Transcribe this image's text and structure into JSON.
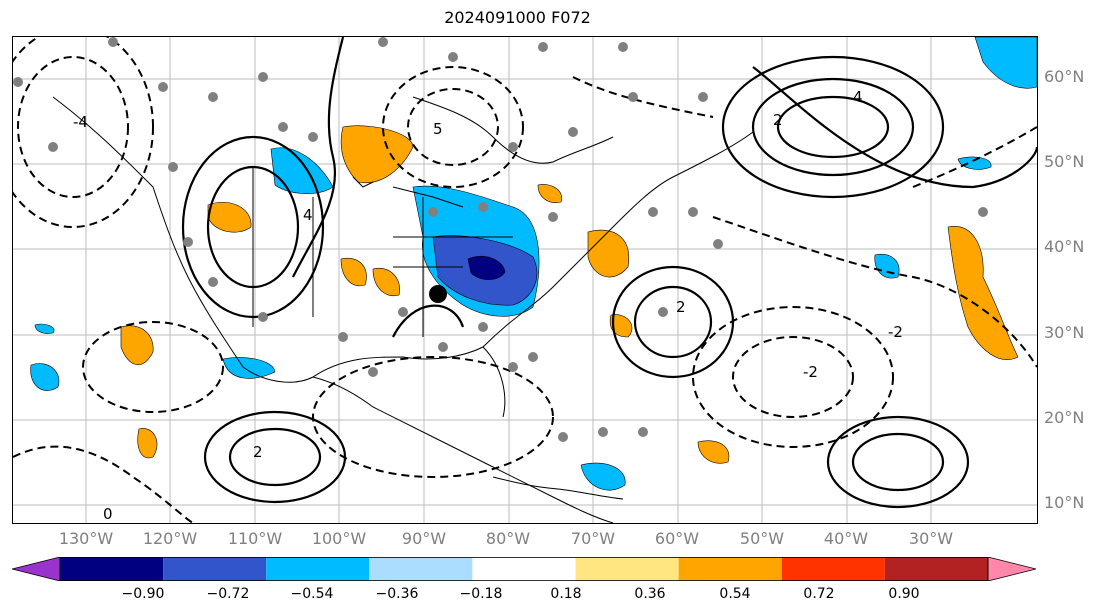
{
  "title": "2024091000 F072",
  "lat_labels": [
    "60°N",
    "50°N",
    "40°N",
    "30°N",
    "20°N",
    "10°N"
  ],
  "lon_labels": [
    "130°W",
    "120°W",
    "110°W",
    "100°W",
    "90°W",
    "80°W",
    "70°W",
    "60°W",
    "50°W",
    "40°W",
    "30°W"
  ],
  "colorbar": {
    "colors": [
      "#9933cc",
      "#000080",
      "#3355cc",
      "#00bbff",
      "#aaddff",
      "#ffffff",
      "#ffe680",
      "#ffa500",
      "#ff3300",
      "#b22222",
      "#ff88aa"
    ],
    "labels": [
      "−0.90",
      "−0.72",
      "−0.54",
      "−0.36",
      "−0.18",
      "0.18",
      "0.36",
      "0.54",
      "0.72",
      "0.90"
    ],
    "extend": "both"
  },
  "contour_labels": [
    "4",
    "2",
    "4",
    "5",
    "2",
    "-2",
    "-4",
    "-2",
    "2",
    "0"
  ],
  "marker_color": "#808080"
}
